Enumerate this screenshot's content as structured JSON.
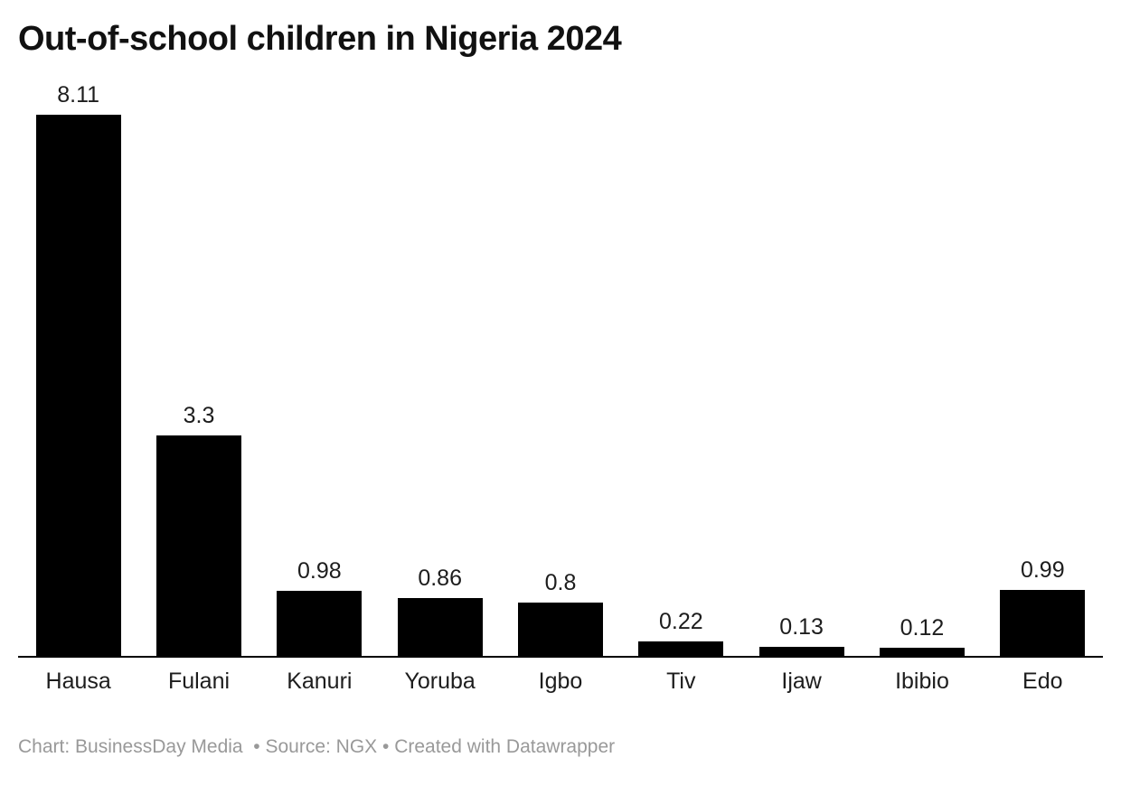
{
  "title": "Out-of-school children in Nigeria 2024",
  "footer": {
    "text": "Chart: BusinessDay Media  • Source: NGX • Created with Datawrapper"
  },
  "colors": {
    "background": "#ffffff",
    "title": "#111111",
    "bar": "#000000",
    "axis": "#000000",
    "label": "#1d1d1d",
    "footer_text": "#999999"
  },
  "chart_data": {
    "type": "bar",
    "title": "Out-of-school children in Nigeria 2024",
    "categories": [
      "Hausa",
      "Fulani",
      "Kanuri",
      "Yoruba",
      "Igbo",
      "Tiv",
      "Ijaw",
      "Ibibio",
      "Edo"
    ],
    "values": [
      8.11,
      3.3,
      0.98,
      0.86,
      0.8,
      0.22,
      0.13,
      0.12,
      0.99
    ],
    "value_labels": [
      "8.11",
      "3.3",
      "0.98",
      "0.86",
      "0.8",
      "0.22",
      "0.13",
      "0.12",
      "0.99"
    ],
    "xlabel": "",
    "ylabel": "",
    "ylim": [
      0,
      8.11
    ],
    "grid": false,
    "legend": false,
    "value_labels_position": "above-bar",
    "bar_color": "#000000"
  }
}
